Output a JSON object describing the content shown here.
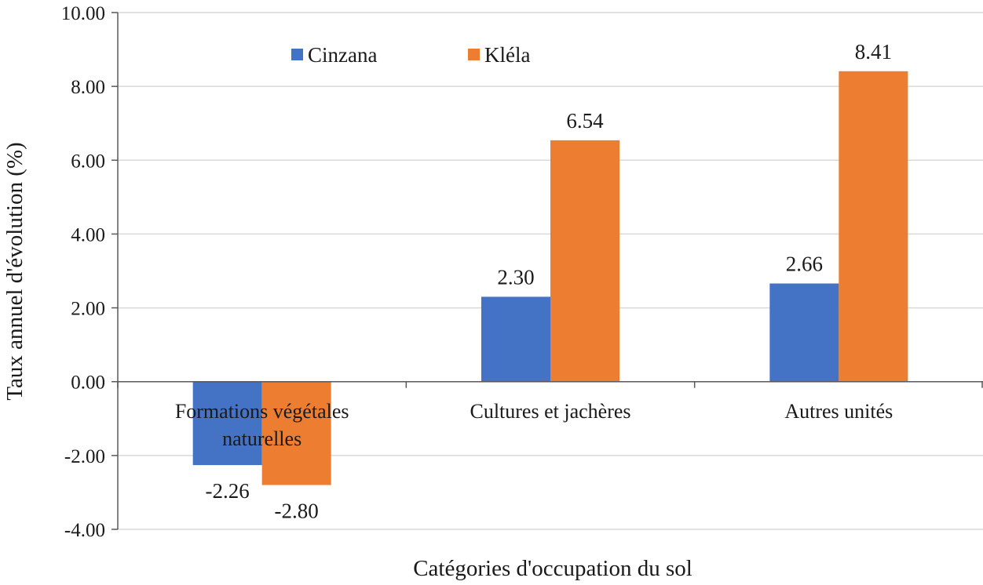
{
  "chart_data": {
    "type": "bar",
    "title": "",
    "xlabel": "Catégories d'occupation du sol",
    "ylabel": "Taux annuel d'évolution (%)",
    "ylim": [
      -4,
      10
    ],
    "yticks": [
      -4,
      -2,
      0,
      2,
      4,
      6,
      8,
      10
    ],
    "ytick_labels": [
      "-4.00",
      "-2.00",
      "0.00",
      "2.00",
      "4.00",
      "6.00",
      "8.00",
      "10.00"
    ],
    "grid": true,
    "legend_position": "top-center",
    "categories": [
      [
        "Formations végétales",
        "naturelles"
      ],
      [
        "Cultures et jachères"
      ],
      [
        "Autres unités"
      ]
    ],
    "series": [
      {
        "name": "Cinzana",
        "color": "#4472C4",
        "values": [
          -2.26,
          2.3,
          2.66
        ],
        "labels": [
          "-2.26",
          "2.30",
          "2.66"
        ]
      },
      {
        "name": "Kléla",
        "color": "#ED7D31",
        "values": [
          -2.8,
          6.54,
          8.41
        ],
        "labels": [
          "-2.80",
          "6.54",
          "8.41"
        ]
      }
    ]
  }
}
